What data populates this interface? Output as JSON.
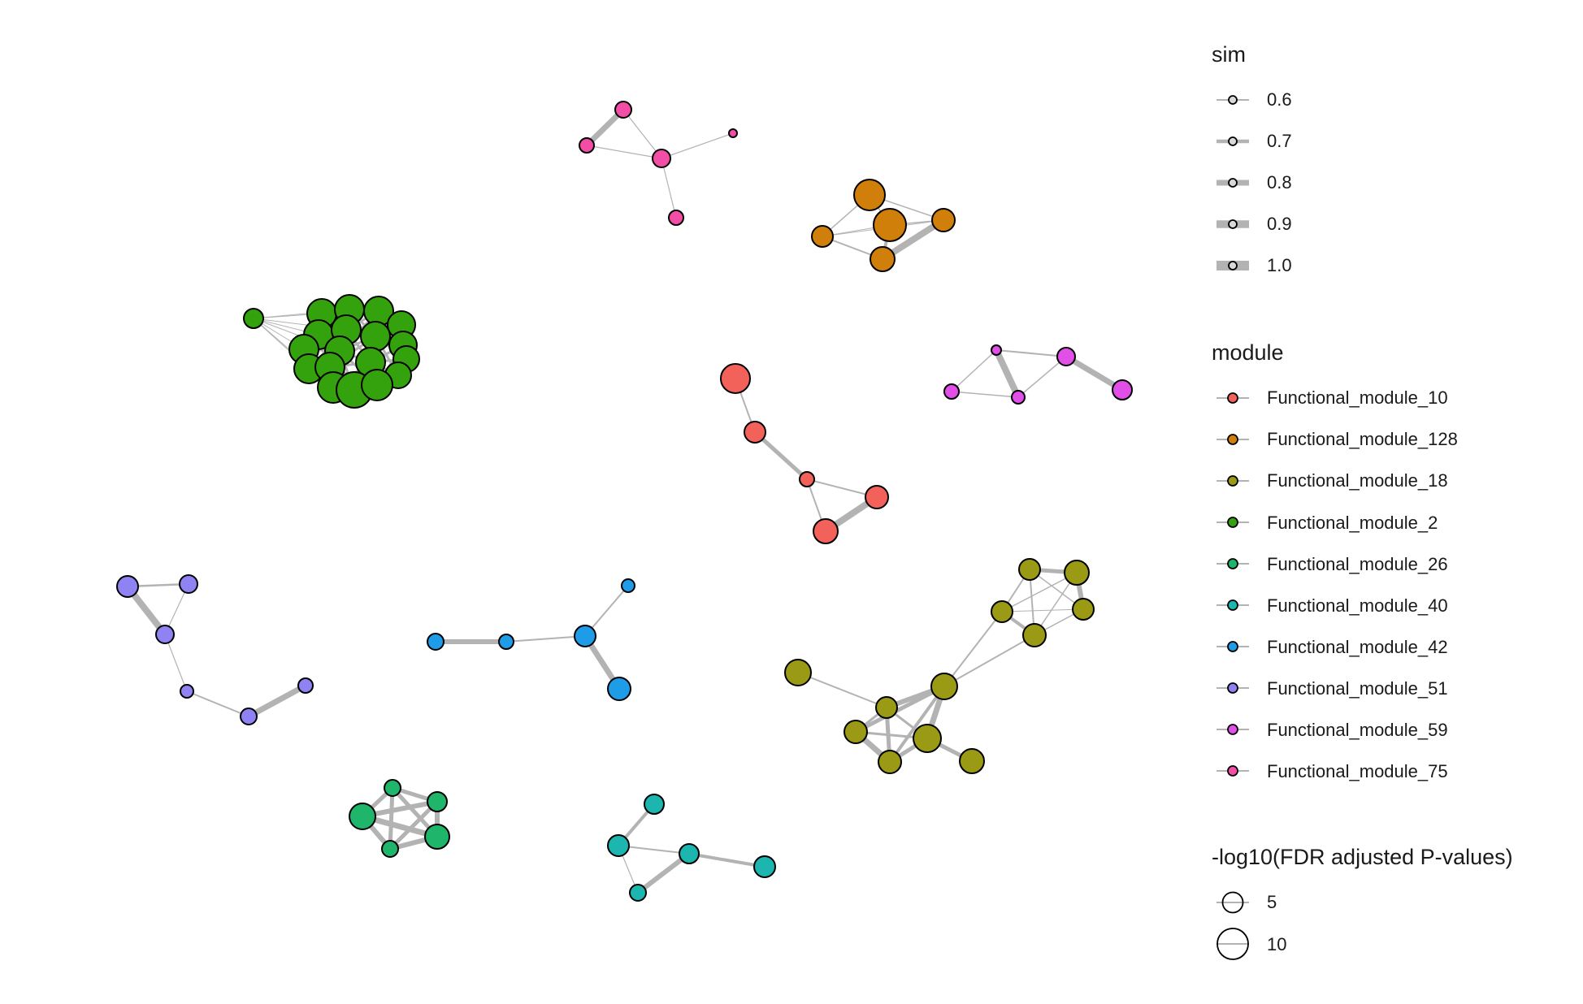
{
  "legend": {
    "sim": {
      "title": "sim",
      "items": [
        {
          "label": "0.6",
          "value": 0.6
        },
        {
          "label": "0.7",
          "value": 0.7
        },
        {
          "label": "0.8",
          "value": 0.8
        },
        {
          "label": "0.9",
          "value": 0.9
        },
        {
          "label": "1.0",
          "value": 1.0
        }
      ]
    },
    "module": {
      "title": "module",
      "items": [
        {
          "label": "Functional_module_10",
          "color": "#f2625a"
        },
        {
          "label": "Functional_module_128",
          "color": "#d17f0b"
        },
        {
          "label": "Functional_module_18",
          "color": "#9a9a14"
        },
        {
          "label": "Functional_module_2",
          "color": "#34a20c"
        },
        {
          "label": "Functional_module_26",
          "color": "#1fb56a"
        },
        {
          "label": "Functional_module_40",
          "color": "#1cb5b0"
        },
        {
          "label": "Functional_module_42",
          "color": "#1f9ce8"
        },
        {
          "label": "Functional_module_51",
          "color": "#8f82f2"
        },
        {
          "label": "Functional_module_59",
          "color": "#e14ee8"
        },
        {
          "label": "Functional_module_75",
          "color": "#f24ea6"
        }
      ]
    },
    "pvalue": {
      "title": "-log10(FDR adjusted P-values)",
      "items": [
        {
          "label": "5",
          "value": 5
        },
        {
          "label": "10",
          "value": 10
        }
      ]
    }
  },
  "edge_color": "#b3b3b3"
}
